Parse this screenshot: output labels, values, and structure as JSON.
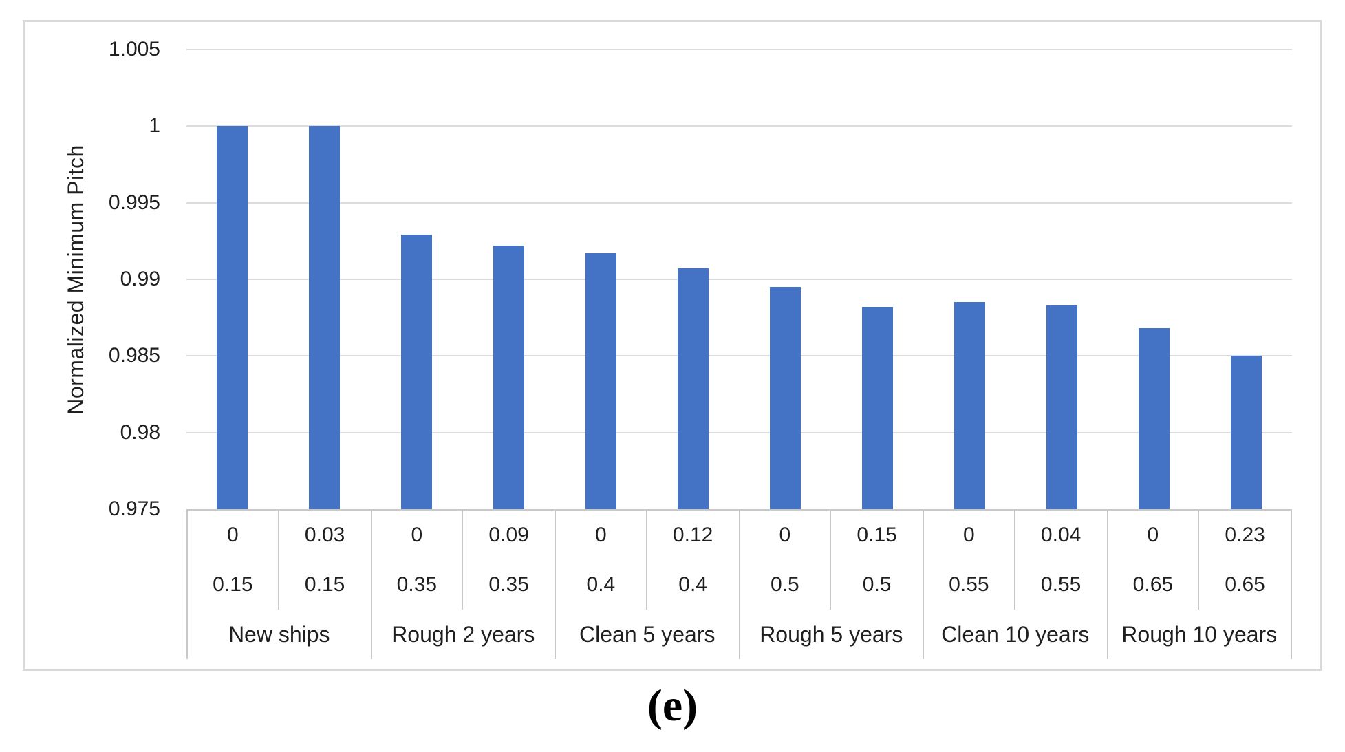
{
  "chart_data": {
    "type": "bar",
    "title": "",
    "ylabel": "Normalized Minimum Pitch",
    "caption": "(e)",
    "ylim": [
      0.975,
      1.005
    ],
    "grid": true,
    "legend": false,
    "bar_color": "#4472C4",
    "yticks": [
      {
        "value": 1.005,
        "label": "1.005"
      },
      {
        "value": 1.0,
        "label": "1"
      },
      {
        "value": 0.995,
        "label": "0.995"
      },
      {
        "value": 0.99,
        "label": "0.99"
      },
      {
        "value": 0.985,
        "label": "0.985"
      },
      {
        "value": 0.98,
        "label": "0.98"
      },
      {
        "value": 0.975,
        "label": "0.975"
      }
    ],
    "groups": [
      {
        "label": "New ships",
        "bars": [
          {
            "row1": "0",
            "row2": "0.15",
            "value": 1.0
          },
          {
            "row1": "0.03",
            "row2": "0.15",
            "value": 1.0
          }
        ]
      },
      {
        "label": "Rough 2 years",
        "bars": [
          {
            "row1": "0",
            "row2": "0.35",
            "value": 0.9929
          },
          {
            "row1": "0.09",
            "row2": "0.35",
            "value": 0.9922
          }
        ]
      },
      {
        "label": "Clean 5 years",
        "bars": [
          {
            "row1": "0",
            "row2": "0.4",
            "value": 0.9917
          },
          {
            "row1": "0.12",
            "row2": "0.4",
            "value": 0.9907
          }
        ]
      },
      {
        "label": "Rough 5 years",
        "bars": [
          {
            "row1": "0",
            "row2": "0.5",
            "value": 0.9895
          },
          {
            "row1": "0.15",
            "row2": "0.5",
            "value": 0.9882
          }
        ]
      },
      {
        "label": "Clean 10 years",
        "bars": [
          {
            "row1": "0",
            "row2": "0.55",
            "value": 0.9885
          },
          {
            "row1": "0.04",
            "row2": "0.55",
            "value": 0.9883
          }
        ]
      },
      {
        "label": "Rough 10 years",
        "bars": [
          {
            "row1": "0",
            "row2": "0.65",
            "value": 0.9868
          },
          {
            "row1": "0.23",
            "row2": "0.65",
            "value": 0.985
          }
        ]
      }
    ]
  }
}
